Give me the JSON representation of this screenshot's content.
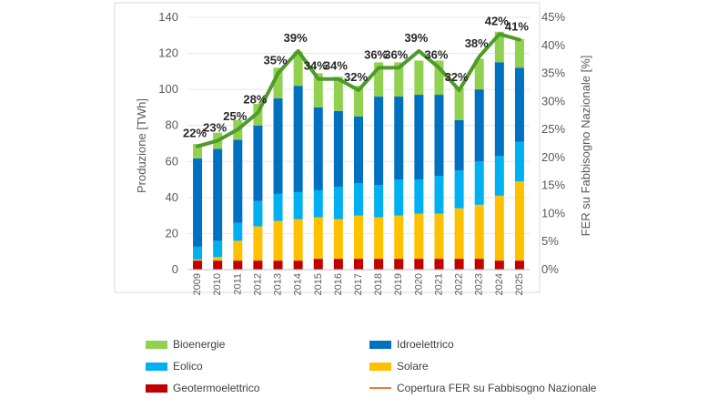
{
  "chart_data": {
    "type": "bar",
    "stacked": true,
    "categories": [
      "2009",
      "2010",
      "2011",
      "2012",
      "2013",
      "2014",
      "2015",
      "2016",
      "2017",
      "2018",
      "2019",
      "2020",
      "2021",
      "2022",
      "2023",
      "2024",
      "2025"
    ],
    "series": [
      {
        "name": "Geotermoelettrico",
        "color": "#C00000",
        "values": [
          5,
          5,
          5,
          5,
          5,
          5,
          6,
          6,
          6,
          6,
          6,
          6,
          6,
          6,
          6,
          5,
          5
        ]
      },
      {
        "name": "Solare",
        "color": "#FFC000",
        "values": [
          0.7,
          2,
          11,
          19,
          22,
          23,
          23,
          22,
          24,
          23,
          24,
          25,
          25,
          28,
          30,
          36,
          44
        ]
      },
      {
        "name": "Eolico",
        "color": "#00B0F0",
        "values": [
          7,
          9,
          10,
          14,
          15,
          15,
          15,
          18,
          18,
          18,
          20,
          19,
          21,
          21,
          24,
          22,
          22
        ]
      },
      {
        "name": "Idroelettrico",
        "color": "#0070C0",
        "values": [
          49,
          51,
          46,
          42,
          53,
          59,
          46,
          42,
          37,
          49,
          46,
          47,
          45,
          28,
          40,
          52,
          41
        ]
      },
      {
        "name": "Bioenergie",
        "color": "#92D050",
        "values": [
          8,
          9,
          11,
          12,
          17,
          19,
          19,
          19,
          17,
          19,
          19,
          19,
          19,
          18,
          17,
          17,
          16
        ]
      }
    ],
    "line": {
      "name": "Copertura FER su Fabbisogno Nazionale",
      "axis": "right",
      "color": "#4E9A2A",
      "values": [
        22,
        23,
        25,
        28,
        35,
        39,
        34,
        34,
        32,
        36,
        36,
        39,
        36,
        32,
        38,
        42,
        41
      ],
      "labels": [
        "22%",
        "23%",
        "25%",
        "28%",
        "35%",
        "39%",
        "34%",
        "34%",
        "32%",
        "36%",
        "36%",
        "39%",
        "36%",
        "32%",
        "38%",
        "42%",
        "41%"
      ]
    },
    "ylabel": "Produzione [TWh]",
    "ylim": [
      0,
      140
    ],
    "yticks": [
      "0",
      "20",
      "40",
      "60",
      "80",
      "100",
      "120",
      "140"
    ],
    "y2label": "FER su Fabbisogno Nazionale [%]",
    "y2lim": [
      0,
      45
    ],
    "y2ticks": [
      "0%",
      "5%",
      "10%",
      "15%",
      "20%",
      "25%",
      "30%",
      "35%",
      "40%",
      "45%"
    ],
    "legend": {
      "position": "bottom",
      "items": [
        {
          "label": "Bioenergie",
          "color": "#92D050",
          "shape": "box"
        },
        {
          "label": "Idroelettrico",
          "color": "#0070C0",
          "shape": "box"
        },
        {
          "label": "Eolico",
          "color": "#00B0F0",
          "shape": "box"
        },
        {
          "label": "Solare",
          "color": "#FFC000",
          "shape": "box"
        },
        {
          "label": "Geotermoelettrico",
          "color": "#C00000",
          "shape": "box"
        },
        {
          "label": "Copertura FER su Fabbisogno Nazionale",
          "color": "#ED7D31",
          "shape": "line"
        }
      ]
    }
  }
}
